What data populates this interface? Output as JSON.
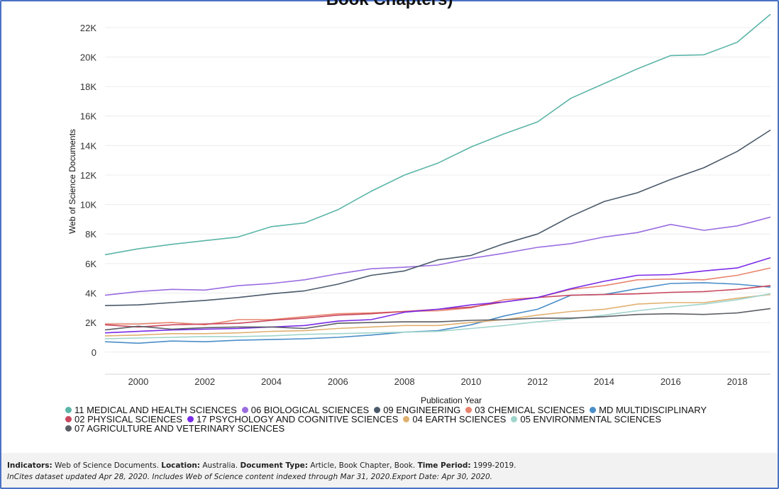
{
  "title_fragment": "Book Chapters)",
  "chart_data": {
    "type": "line",
    "xlabel": "Publication Year",
    "ylabel": "Web of Science Documents",
    "xlim": [
      1999,
      2019
    ],
    "ylim": [
      -1500,
      23000
    ],
    "x_ticks": [
      2000,
      2002,
      2004,
      2006,
      2008,
      2010,
      2012,
      2014,
      2016,
      2018
    ],
    "y_ticks": [
      0,
      2000,
      4000,
      6000,
      8000,
      10000,
      12000,
      14000,
      16000,
      18000,
      20000,
      22000
    ],
    "y_tick_labels": [
      "0",
      "2K",
      "4K",
      "6K",
      "8K",
      "10K",
      "12K",
      "14K",
      "16K",
      "18K",
      "20K",
      "22K"
    ],
    "x_tick_labels": [
      "2000",
      "2002",
      "2004",
      "2006",
      "2008",
      "2010",
      "2012",
      "2014",
      "2016",
      "2018"
    ],
    "grid": true,
    "legend_position": "bottom",
    "x": [
      1999,
      2000,
      2001,
      2002,
      2003,
      2004,
      2005,
      2006,
      2007,
      2008,
      2009,
      2010,
      2011,
      2012,
      2013,
      2014,
      2015,
      2016,
      2017,
      2018,
      2019
    ],
    "series": [
      {
        "name": "11 MEDICAL AND HEALTH SCIENCES",
        "color": "#5bb5a8",
        "values": [
          6600,
          7000,
          7300,
          7550,
          7800,
          8500,
          8750,
          9650,
          10900,
          12000,
          12800,
          13900,
          14800,
          15600,
          17200,
          18200,
          19200,
          20100,
          20150,
          21000,
          22900
        ]
      },
      {
        "name": "06 BIOLOGICAL SCIENCES",
        "color": "#9b6de0",
        "values": [
          3850,
          4100,
          4250,
          4200,
          4500,
          4650,
          4900,
          5300,
          5650,
          5750,
          5900,
          6350,
          6700,
          7100,
          7350,
          7800,
          8100,
          8650,
          8250,
          8550,
          9150
        ]
      },
      {
        "name": "09 ENGINEERING",
        "color": "#4a5a6a",
        "values": [
          3150,
          3200,
          3350,
          3500,
          3700,
          3950,
          4150,
          4600,
          5200,
          5500,
          6250,
          6550,
          7350,
          8000,
          9200,
          10200,
          10800,
          11700,
          12500,
          13600,
          15050
        ]
      },
      {
        "name": "03 CHEMICAL SCIENCES",
        "color": "#e8846e",
        "values": [
          1900,
          1900,
          2000,
          1850,
          2200,
          2200,
          2400,
          2600,
          2650,
          2750,
          2800,
          3000,
          3550,
          3700,
          4250,
          4500,
          4900,
          4950,
          4900,
          5200,
          5700
        ]
      },
      {
        "name": "MD MULTIDISCIPLINARY",
        "color": "#4a8ec9",
        "values": [
          700,
          600,
          750,
          700,
          800,
          850,
          900,
          1000,
          1150,
          1350,
          1450,
          1850,
          2450,
          2900,
          3850,
          3900,
          4300,
          4650,
          4700,
          4600,
          4400
        ]
      },
      {
        "name": "02 PHYSICAL SCIENCES",
        "color": "#c9485e",
        "values": [
          1850,
          1700,
          1850,
          1900,
          1950,
          2150,
          2300,
          2500,
          2600,
          2750,
          2900,
          3050,
          3400,
          3700,
          3850,
          3900,
          3950,
          4050,
          4100,
          4250,
          4500
        ]
      },
      {
        "name": "17 PSYCHOLOGY AND COGNITIVE SCIENCES",
        "color": "#7a2be8",
        "values": [
          1300,
          1400,
          1500,
          1550,
          1600,
          1700,
          1800,
          2100,
          2200,
          2700,
          2900,
          3200,
          3400,
          3700,
          4300,
          4800,
          5200,
          5250,
          5500,
          5700,
          6400
        ]
      },
      {
        "name": "04 EARTH SCIENCES",
        "color": "#e0b070",
        "values": [
          1100,
          1150,
          1250,
          1250,
          1300,
          1400,
          1450,
          1600,
          1700,
          1800,
          1800,
          2000,
          2200,
          2500,
          2750,
          2900,
          3250,
          3350,
          3350,
          3650,
          3900
        ]
      },
      {
        "name": "05 ENVIRONMENTAL SCIENCES",
        "color": "#9fd4cc",
        "values": [
          900,
          950,
          1000,
          1050,
          1050,
          1100,
          1200,
          1250,
          1300,
          1350,
          1400,
          1600,
          1800,
          2050,
          2250,
          2500,
          2800,
          3050,
          3250,
          3550,
          3950
        ]
      },
      {
        "name": "07 AGRICULTURE AND VETERINARY SCIENCES",
        "color": "#5c5f66",
        "values": [
          1500,
          1750,
          1550,
          1650,
          1700,
          1700,
          1600,
          1950,
          2000,
          2050,
          2050,
          2150,
          2200,
          2300,
          2300,
          2400,
          2550,
          2600,
          2550,
          2650,
          2950
        ]
      }
    ]
  },
  "legend_rows": [
    [
      0,
      1,
      2,
      3,
      4
    ],
    [
      5,
      6,
      7,
      8
    ],
    [
      9
    ]
  ],
  "footer": {
    "line1": [
      {
        "label": "Indicators:",
        "text": " Web of Science Documents. "
      },
      {
        "label": "Location:",
        "text": " Australia. "
      },
      {
        "label": "Document Type:",
        "text": " Article, Book Chapter, Book. "
      },
      {
        "label": "Time Period:",
        "text": " 1999-2019."
      }
    ],
    "line2": "InCites dataset updated Apr 28, 2020. Includes Web of Science content indexed through Mar 31, 2020.Export Date: Apr 30, 2020."
  }
}
